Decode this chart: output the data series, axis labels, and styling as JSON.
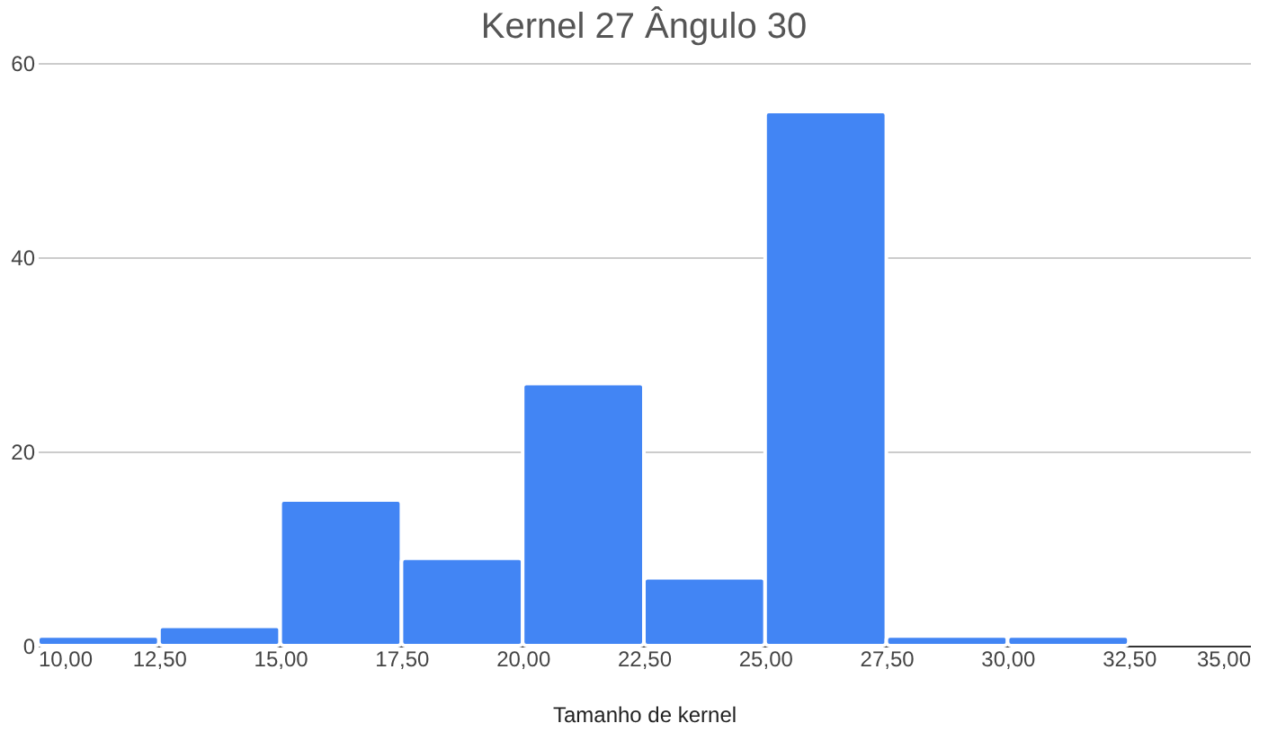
{
  "chart_data": {
    "type": "histogram",
    "title": "Kernel 27 Ângulo 30",
    "xlabel": "Tamanho de kernel",
    "bins": [
      10,
      12.5,
      15,
      17.5,
      20,
      22.5,
      25,
      27.5,
      30,
      32.5
    ],
    "values": [
      1,
      2,
      15,
      9,
      27,
      7,
      55,
      1,
      1
    ],
    "color": "#4285f4",
    "xlim": [
      10,
      35
    ],
    "xticks": [
      {
        "value": 10,
        "label": "10,00"
      },
      {
        "value": 12.5,
        "label": "12,50"
      },
      {
        "value": 15,
        "label": "15,00"
      },
      {
        "value": 17.5,
        "label": "17,50"
      },
      {
        "value": 20,
        "label": "20,00"
      },
      {
        "value": 22.5,
        "label": "22,50"
      },
      {
        "value": 25,
        "label": "25,00"
      },
      {
        "value": 27.5,
        "label": "27,50"
      },
      {
        "value": 30,
        "label": "30,00"
      },
      {
        "value": 32.5,
        "label": "32,50"
      },
      {
        "value": 35,
        "label": "35,00"
      }
    ],
    "ylim": [
      0,
      60
    ],
    "yticks": [
      0,
      20,
      40,
      60
    ],
    "grid": "y"
  }
}
